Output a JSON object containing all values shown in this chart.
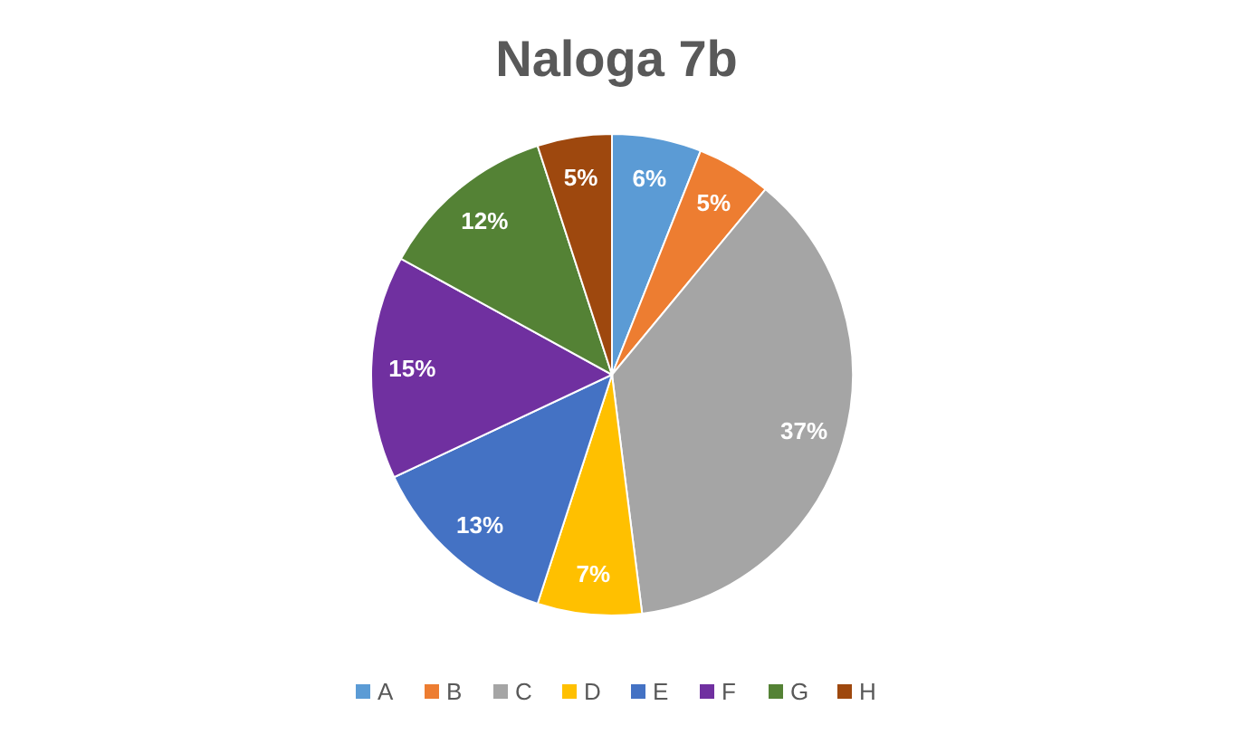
{
  "chart_data": {
    "type": "pie",
    "title": "Naloga 7b",
    "categories": [
      "A",
      "B",
      "C",
      "D",
      "E",
      "F",
      "G",
      "H"
    ],
    "values": [
      6,
      5,
      37,
      7,
      13,
      15,
      12,
      5
    ],
    "colors": [
      "#5b9bd5",
      "#ed7d31",
      "#a5a5a5",
      "#ffc000",
      "#4472c4",
      "#7030a0",
      "#548235",
      "#9e480e"
    ],
    "value_labels": [
      "6%",
      "5%",
      "37%",
      "7%",
      "13%",
      "15%",
      "12%",
      "5%"
    ],
    "legend": "bottom"
  }
}
